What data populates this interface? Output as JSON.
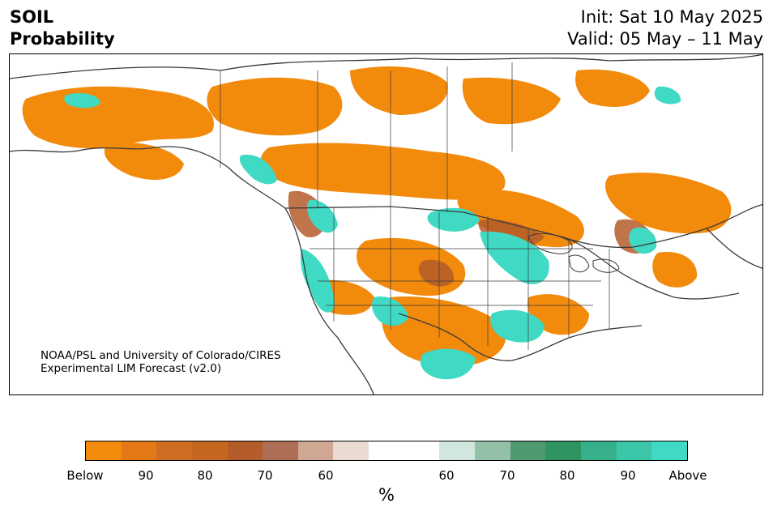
{
  "header": {
    "variable": "SOIL",
    "product": "Probability",
    "init": "Init: Sat 10 May 2025",
    "valid": "Valid: 05 May – 11 May"
  },
  "credit": {
    "line1": "NOAA/PSL and University of Colorado/CIRES",
    "line2": "Experimental LIM Forecast (v2.0)"
  },
  "colors": {
    "below_strong": "#f28c0f",
    "above_strong": "#40d9c4",
    "borders": "#3a3a3a"
  },
  "colorbar": {
    "segments": [
      "#f28a0c",
      "#e47816",
      "#cf6e22",
      "#c5671f",
      "#b45c2a",
      "#ac6f55",
      "#d0a792",
      "#eadbd2",
      "#ffffff",
      "#ffffff",
      "#d1e6dc",
      "#93c1a8",
      "#4f9a6e",
      "#2e9460",
      "#36b08a",
      "#3cc6a8",
      "#40d9c4"
    ],
    "ticks": [
      "Below",
      "90",
      "80",
      "70",
      "60",
      "60",
      "70",
      "80",
      "90",
      "Above"
    ],
    "unit": "%"
  }
}
